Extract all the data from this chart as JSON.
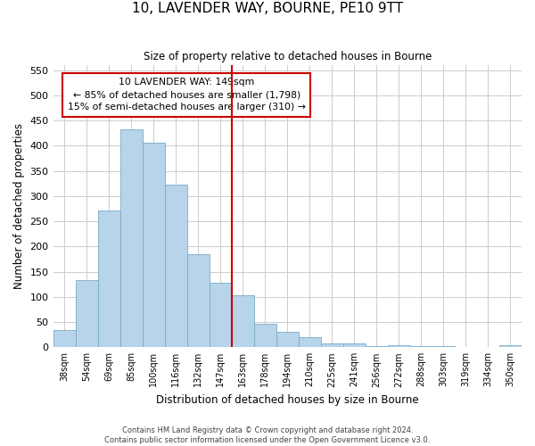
{
  "title": "10, LAVENDER WAY, BOURNE, PE10 9TT",
  "subtitle": "Size of property relative to detached houses in Bourne",
  "xlabel": "Distribution of detached houses by size in Bourne",
  "ylabel": "Number of detached properties",
  "bar_labels": [
    "38sqm",
    "54sqm",
    "69sqm",
    "85sqm",
    "100sqm",
    "116sqm",
    "132sqm",
    "147sqm",
    "163sqm",
    "178sqm",
    "194sqm",
    "210sqm",
    "225sqm",
    "241sqm",
    "256sqm",
    "272sqm",
    "288sqm",
    "303sqm",
    "319sqm",
    "334sqm",
    "350sqm"
  ],
  "bar_values": [
    35,
    133,
    272,
    432,
    406,
    323,
    184,
    128,
    103,
    46,
    30,
    20,
    8,
    7,
    3,
    4,
    2,
    2,
    1,
    1,
    4
  ],
  "bar_color": "#b8d4ea",
  "bar_edge_color": "#7aaac8",
  "vline_x_index": 7,
  "vline_color": "#cc0000",
  "annotation_title": "10 LAVENDER WAY: 149sqm",
  "annotation_line1": "← 85% of detached houses are smaller (1,798)",
  "annotation_line2": "15% of semi-detached houses are larger (310) →",
  "annotation_box_color": "#ffffff",
  "annotation_box_edge": "#cc0000",
  "ylim": [
    0,
    560
  ],
  "yticks": [
    0,
    50,
    100,
    150,
    200,
    250,
    300,
    350,
    400,
    450,
    500,
    550
  ],
  "footer1": "Contains HM Land Registry data © Crown copyright and database right 2024.",
  "footer2": "Contains public sector information licensed under the Open Government Licence v3.0.",
  "background_color": "#ffffff",
  "grid_color": "#cccccc"
}
